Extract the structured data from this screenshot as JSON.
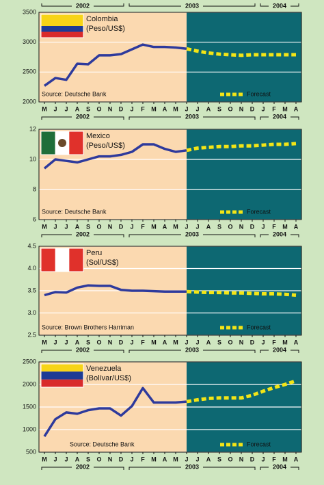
{
  "chart_data": [
    {
      "type": "line",
      "title": "Colombia",
      "subtitle": "(Peso/US$)",
      "source": "Source: Deutsche Bank",
      "top_year_labels": [
        "2002",
        "2003",
        "2004"
      ],
      "categories": [
        "M",
        "J",
        "J",
        "A",
        "S",
        "O",
        "N",
        "D",
        "J",
        "F",
        "M",
        "A",
        "M",
        "J",
        "J",
        "A",
        "S",
        "O",
        "N",
        "D",
        "J",
        "F",
        "M",
        "A"
      ],
      "year_labels": [
        "2002",
        "2003",
        "2004"
      ],
      "ylim": [
        2000,
        3500
      ],
      "yticks": [
        2000,
        2500,
        3000,
        3500
      ],
      "grid": true,
      "series": [
        {
          "color": "#2e3a9c",
          "values": [
            2270,
            2400,
            2370,
            2640,
            2630,
            2780,
            2780,
            2800,
            2880,
            2960,
            2920,
            2920,
            2910,
            2890,
            null,
            null,
            null,
            null,
            null,
            null,
            null,
            null,
            null,
            null
          ]
        },
        {
          "name": "Forecast",
          "color": "#f3e516",
          "values": [
            null,
            null,
            null,
            null,
            null,
            null,
            null,
            null,
            null,
            null,
            null,
            null,
            null,
            2890,
            2850,
            2820,
            2800,
            2790,
            2780,
            2790,
            2790,
            2790,
            2790,
            2790
          ]
        }
      ]
    },
    {
      "type": "line",
      "title": "Mexico",
      "subtitle": "(Peso/US$)",
      "source": "Source: Deutsche Bank",
      "categories": [
        "M",
        "J",
        "J",
        "A",
        "S",
        "O",
        "N",
        "D",
        "J",
        "F",
        "M",
        "A",
        "M",
        "J",
        "J",
        "A",
        "S",
        "O",
        "N",
        "D",
        "J",
        "F",
        "M",
        "A"
      ],
      "year_labels": [
        "2002",
        "2003",
        "2004"
      ],
      "ylim": [
        6,
        12
      ],
      "yticks": [
        6,
        8,
        10,
        12
      ],
      "grid": true,
      "series": [
        {
          "color": "#2e3a9c",
          "values": [
            9.4,
            10.0,
            9.9,
            9.8,
            10.0,
            10.2,
            10.2,
            10.3,
            10.5,
            11.0,
            11.0,
            10.7,
            10.5,
            10.6,
            null,
            null,
            null,
            null,
            null,
            null,
            null,
            null,
            null,
            null
          ]
        },
        {
          "name": "Forecast",
          "color": "#f3e516",
          "values": [
            null,
            null,
            null,
            null,
            null,
            null,
            null,
            null,
            null,
            null,
            null,
            null,
            null,
            10.6,
            10.75,
            10.8,
            10.85,
            10.85,
            10.9,
            10.9,
            10.95,
            11.0,
            11.0,
            11.05
          ]
        }
      ]
    },
    {
      "type": "line",
      "title": "Peru",
      "subtitle": "(Sol/US$)",
      "source": "Source: Brown Brothers Harriman",
      "categories": [
        "M",
        "J",
        "J",
        "A",
        "S",
        "O",
        "N",
        "D",
        "J",
        "F",
        "M",
        "A",
        "M",
        "J",
        "J",
        "A",
        "S",
        "O",
        "N",
        "D",
        "J",
        "F",
        "M",
        "A"
      ],
      "year_labels": [
        "2002",
        "2003",
        "2004"
      ],
      "ylim": [
        2.5,
        4.5
      ],
      "yticks": [
        2.5,
        {
          "value": 3,
          "label": "3.0"
        },
        3.5,
        {
          "value": 4,
          "label": "4.0"
        },
        4.5
      ],
      "grid": true,
      "series": [
        {
          "color": "#2e3a9c",
          "values": [
            3.4,
            3.47,
            3.46,
            3.57,
            3.62,
            3.61,
            3.61,
            3.52,
            3.5,
            3.5,
            3.49,
            3.48,
            3.48,
            3.48,
            null,
            null,
            null,
            null,
            null,
            null,
            null,
            null,
            null,
            null
          ]
        },
        {
          "name": "Forecast",
          "color": "#f3e516",
          "values": [
            null,
            null,
            null,
            null,
            null,
            null,
            null,
            null,
            null,
            null,
            null,
            null,
            null,
            3.48,
            3.47,
            3.46,
            3.46,
            3.45,
            3.45,
            3.44,
            3.43,
            3.43,
            3.42,
            3.4
          ]
        }
      ]
    },
    {
      "type": "line",
      "title": "Venezuela",
      "subtitle": "(Bolívar/US$)",
      "source": "Source: Deutsche Bank",
      "categories": [
        "M",
        "J",
        "J",
        "A",
        "S",
        "O",
        "N",
        "D",
        "J",
        "F",
        "M",
        "A",
        "M",
        "J",
        "J",
        "A",
        "S",
        "O",
        "N",
        "D",
        "J",
        "F",
        "M",
        "A"
      ],
      "year_labels": [
        "2002",
        "2003",
        "2004"
      ],
      "ylim": [
        500,
        2500
      ],
      "yticks": [
        500,
        1000,
        1500,
        2000,
        2500
      ],
      "grid": true,
      "series": [
        {
          "color": "#2e3a9c",
          "values": [
            850,
            1230,
            1380,
            1350,
            1430,
            1470,
            1470,
            1310,
            1520,
            1920,
            1600,
            1600,
            1600,
            1620,
            null,
            null,
            null,
            null,
            null,
            null,
            null,
            null,
            null,
            null
          ]
        },
        {
          "name": "Forecast",
          "color": "#f3e516",
          "values": [
            null,
            null,
            null,
            null,
            null,
            null,
            null,
            null,
            null,
            null,
            null,
            null,
            null,
            1620,
            1660,
            1690,
            1700,
            1700,
            1700,
            1760,
            1850,
            1930,
            2000,
            2080
          ]
        }
      ]
    }
  ]
}
